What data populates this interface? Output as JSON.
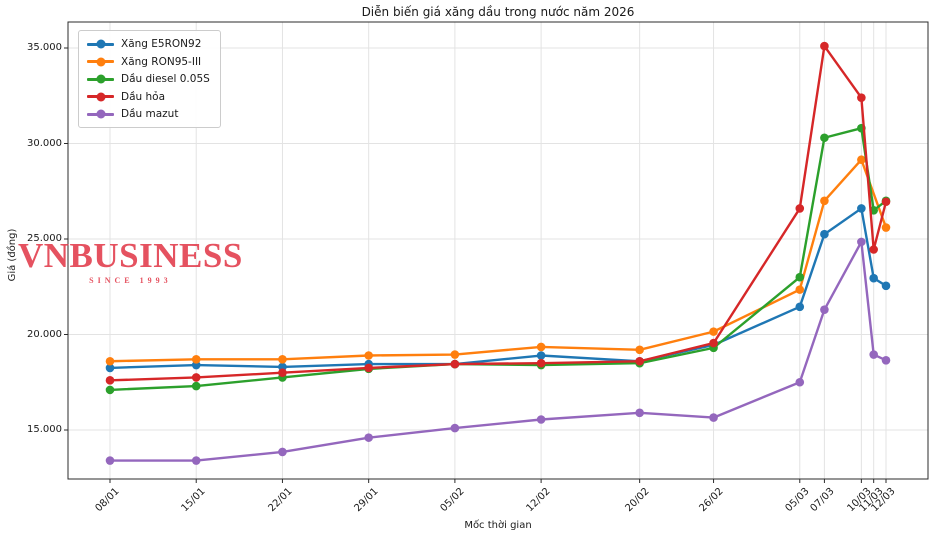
{
  "title": "Diễn biến giá xăng dầu trong nước năm 2026",
  "watermark": {
    "title": "VNBUSINESS",
    "subtitle": "SINCE 1993",
    "color": "#e23b4b"
  },
  "chart_data": {
    "type": "line",
    "title": "Diễn biến giá xăng dầu trong nước năm 2026",
    "xlabel": "Mốc thời gian",
    "ylabel": "Giá (đồng)",
    "categories": [
      "08/01",
      "15/01",
      "22/01",
      "29/01",
      "05/02",
      "12/02",
      "20/02",
      "26/02",
      "05/03",
      "07/03",
      "10/03",
      "11/03",
      "12/03"
    ],
    "x_day_serial": [
      8,
      15,
      22,
      29,
      36,
      43,
      51,
      57,
      64,
      66,
      69,
      70,
      71
    ],
    "yticks": [
      15000,
      20000,
      25000,
      30000,
      35000
    ],
    "ytick_labels": [
      "15.000",
      "20.000",
      "25.000",
      "30.000",
      "35.000"
    ],
    "ylim": [
      12600,
      35900
    ],
    "grid": true,
    "legend_position": "upper-left",
    "grid_color": "#e3e3e3",
    "spine_color": "#2b2b2b",
    "series": [
      {
        "name": "Xăng E5RON92",
        "color": "#1f77b4",
        "values": [
          18250,
          18400,
          18300,
          18450,
          18450,
          18900,
          18600,
          19450,
          21450,
          25250,
          26600,
          22950,
          22550
        ]
      },
      {
        "name": "Xăng RON95-III",
        "color": "#ff7f0e",
        "values": [
          18600,
          18700,
          18700,
          18900,
          18950,
          19350,
          19200,
          20150,
          22350,
          27000,
          29150,
          null,
          25600
        ]
      },
      {
        "name": "Dầu diesel 0.05S",
        "color": "#2ca02c",
        "values": [
          17100,
          17300,
          17750,
          18200,
          18450,
          18400,
          18500,
          19300,
          23000,
          30300,
          30800,
          26500,
          27000
        ]
      },
      {
        "name": "Dầu hỏa",
        "color": "#d62728",
        "values": [
          17600,
          17750,
          18000,
          18250,
          18450,
          18500,
          18600,
          19550,
          26600,
          35100,
          32400,
          24450,
          26950
        ]
      },
      {
        "name": "Dầu mazut",
        "color": "#9467bd",
        "values": [
          13400,
          13400,
          13850,
          14600,
          15100,
          15550,
          15900,
          15650,
          17500,
          21300,
          24850,
          18950,
          18650
        ]
      }
    ]
  }
}
